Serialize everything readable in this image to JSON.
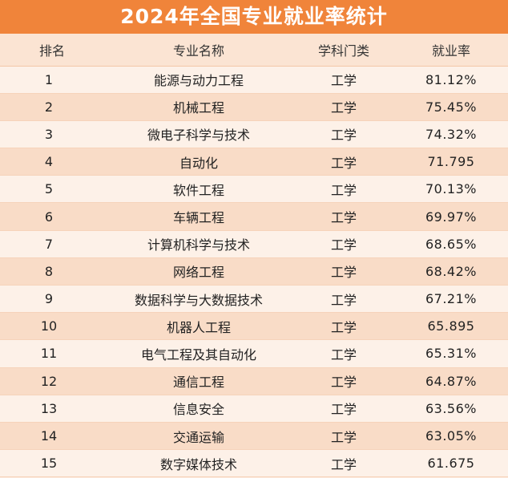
{
  "title": "2024年全国专业就业率统计",
  "colors": {
    "title_bg": "#f0843a",
    "row_light": "#fdf1e8",
    "row_dark": "#f9dcc7"
  },
  "table": {
    "headers": [
      "排名",
      "专业名称",
      "学科门类",
      "就业率"
    ],
    "rows": [
      {
        "rank": "1",
        "name": "能源与动力工程",
        "category": "工学",
        "rate": "81.12%"
      },
      {
        "rank": "2",
        "name": "机械工程",
        "category": "工学",
        "rate": "75.45%"
      },
      {
        "rank": "3",
        "name": "微电子科学与技术",
        "category": "工学",
        "rate": "74.32%"
      },
      {
        "rank": "4",
        "name": "自动化",
        "category": "工学",
        "rate": "71.795"
      },
      {
        "rank": "5",
        "name": "软件工程",
        "category": "工学",
        "rate": "70.13%"
      },
      {
        "rank": "6",
        "name": "车辆工程",
        "category": "工学",
        "rate": "69.97%"
      },
      {
        "rank": "7",
        "name": "计算机科学与技术",
        "category": "工学",
        "rate": "68.65%"
      },
      {
        "rank": "8",
        "name": "网络工程",
        "category": "工学",
        "rate": "68.42%"
      },
      {
        "rank": "9",
        "name": "数据科学与大数据技术",
        "category": "工学",
        "rate": "67.21%"
      },
      {
        "rank": "10",
        "name": "机器人工程",
        "category": "工学",
        "rate": "65.895"
      },
      {
        "rank": "11",
        "name": "电气工程及其自动化",
        "category": "工学",
        "rate": "65.31%"
      },
      {
        "rank": "12",
        "name": "通信工程",
        "category": "工学",
        "rate": "64.87%"
      },
      {
        "rank": "13",
        "name": "信息安全",
        "category": "工学",
        "rate": "63.56%"
      },
      {
        "rank": "14",
        "name": "交通运输",
        "category": "工学",
        "rate": "63.05%"
      },
      {
        "rank": "15",
        "name": "数字媒体技术",
        "category": "工学",
        "rate": "61.675"
      }
    ]
  }
}
